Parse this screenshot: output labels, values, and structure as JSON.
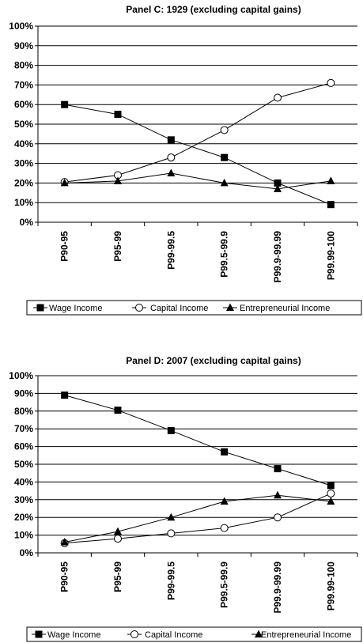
{
  "chart_data": [
    {
      "type": "line",
      "title": "Panel C: 1929 (excluding capital gains)",
      "categories": [
        "P90-95",
        "P95-99",
        "P99-99.5",
        "P99.5-99.9",
        "P99.9-99.99",
        "P99.99-100"
      ],
      "ylim": [
        0,
        100
      ],
      "y_ticks": [
        "0%",
        "10%",
        "20%",
        "30%",
        "40%",
        "50%",
        "60%",
        "70%",
        "80%",
        "90%",
        "100%"
      ],
      "grid": true,
      "legend_position": "bottom",
      "series": [
        {
          "name": "Wage Income",
          "marker": "filled-square",
          "values": [
            60,
            55,
            42,
            33,
            20,
            9
          ]
        },
        {
          "name": "Capital Income",
          "marker": "open-circle",
          "values": [
            20.5,
            24,
            33,
            47,
            63.5,
            71
          ]
        },
        {
          "name": "Entrepreneurial Income",
          "marker": "filled-triangle",
          "values": [
            20,
            21,
            25,
            20,
            17,
            21
          ]
        }
      ]
    },
    {
      "type": "line",
      "title": "Panel D: 2007 (excluding capital gains)",
      "categories": [
        "P90-95",
        "P95-99",
        "P99-99.5",
        "P99.5-99.9",
        "P99.9-99.99",
        "P99.99-100"
      ],
      "ylim": [
        0,
        100
      ],
      "y_ticks": [
        "0%",
        "10%",
        "20%",
        "30%",
        "40%",
        "50%",
        "60%",
        "70%",
        "80%",
        "90%",
        "100%"
      ],
      "grid": true,
      "legend_position": "bottom",
      "series": [
        {
          "name": "Wage Income",
          "marker": "filled-square",
          "values": [
            89,
            80.5,
            69,
            57,
            47.5,
            38
          ]
        },
        {
          "name": "Capital Income",
          "marker": "open-circle",
          "values": [
            5.5,
            8,
            11,
            14,
            20,
            33.5
          ]
        },
        {
          "name": "Entrepreneurial Income",
          "marker": "filled-triangle",
          "values": [
            6,
            12,
            20,
            29,
            32.5,
            29
          ]
        }
      ]
    }
  ]
}
